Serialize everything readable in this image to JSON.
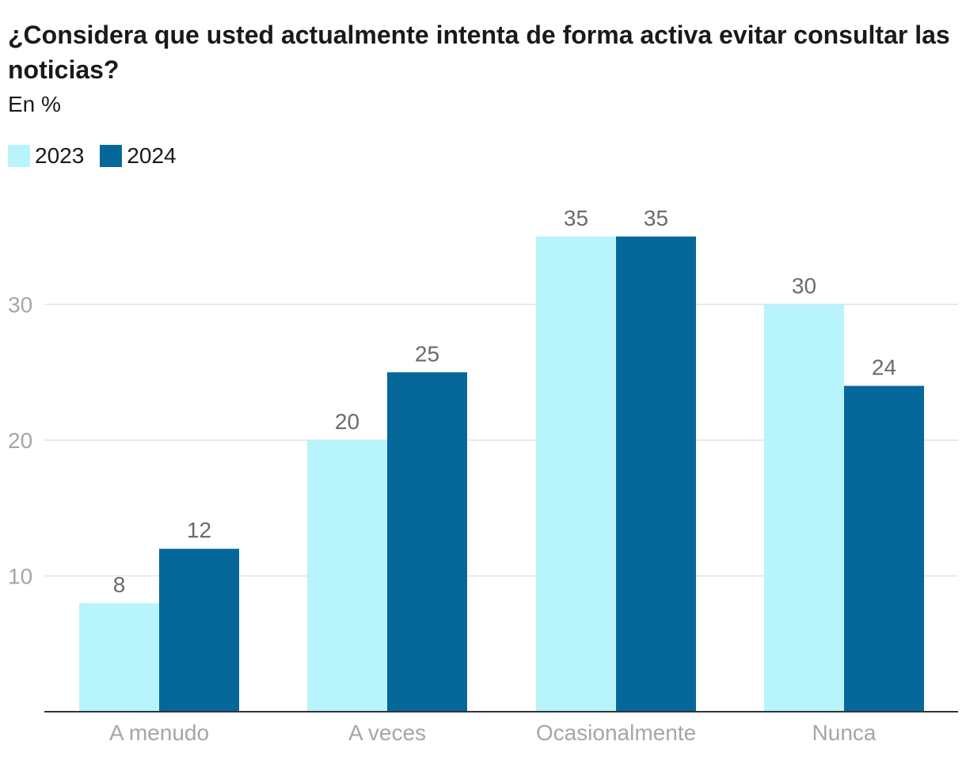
{
  "chart_data": {
    "type": "bar",
    "title": "¿Considera que usted actualmente intenta de forma activa evitar consultar las noticias?",
    "subtitle": "En %",
    "categories": [
      "A menudo",
      "A veces",
      "Ocasionalmente",
      "Nunca"
    ],
    "series": [
      {
        "name": "2023",
        "color": "#b8f4fb",
        "values": [
          8,
          20,
          35,
          30
        ]
      },
      {
        "name": "2024",
        "color": "#06689a",
        "values": [
          12,
          25,
          35,
          24
        ]
      }
    ],
    "yticks": [
      10,
      20,
      30
    ],
    "ylim": [
      0,
      35
    ],
    "grid": true,
    "legend": "top-left",
    "xlabel": "",
    "ylabel": ""
  }
}
